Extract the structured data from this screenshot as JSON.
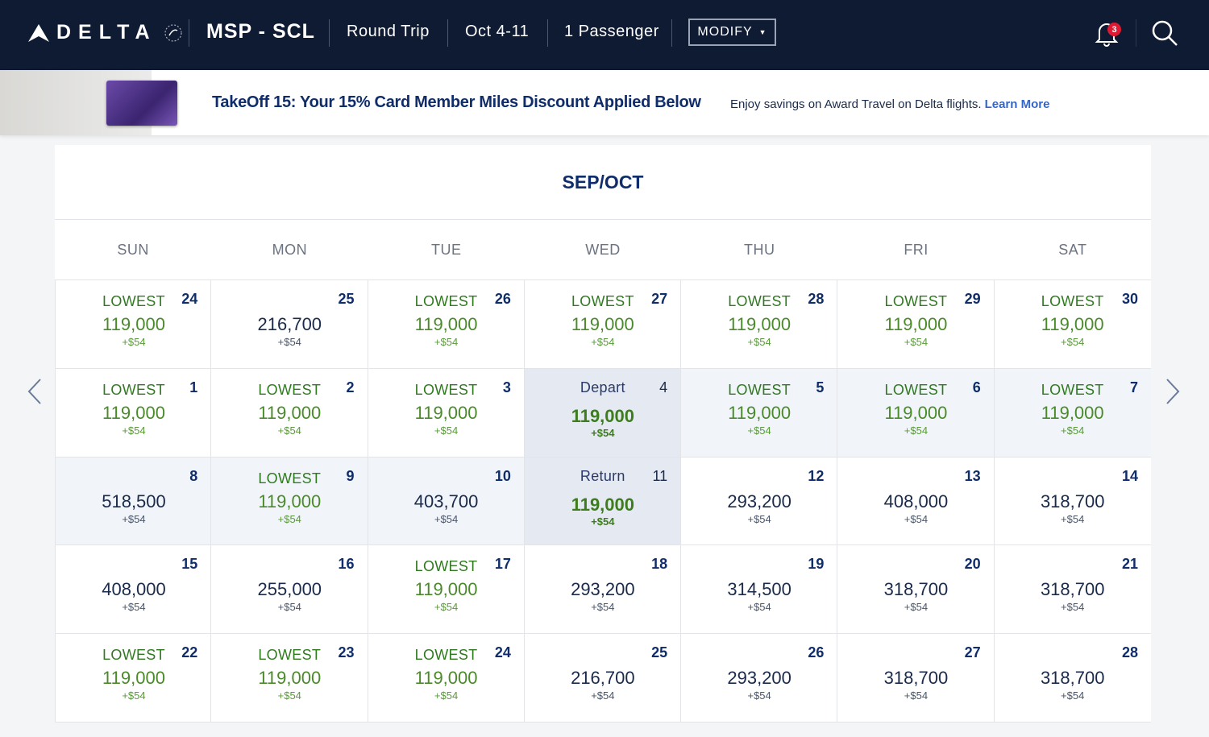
{
  "nav": {
    "brand": "DELTA",
    "route": "MSP - SCL",
    "trip_type": "Round Trip",
    "dates": "Oct 4-11",
    "passengers": "1 Passenger",
    "modify_label": "MODIFY",
    "notification_count": "3"
  },
  "banner": {
    "title": "TakeOff 15: Your 15% Card Member Miles Discount Applied Below",
    "subtitle": "Enjoy savings on Award Travel on Delta flights.",
    "link": "Learn More"
  },
  "calendar": {
    "month": "SEP/OCT",
    "days_of_week": [
      "SUN",
      "MON",
      "TUE",
      "WED",
      "THU",
      "FRI",
      "SAT"
    ],
    "lowest_label": "LOWEST",
    "cells": [
      {
        "day": "24",
        "label": "LOWEST",
        "price": "119,000",
        "fee": "+$54"
      },
      {
        "day": "25",
        "label": "",
        "price": "216,700",
        "fee": "+$54"
      },
      {
        "day": "26",
        "label": "LOWEST",
        "price": "119,000",
        "fee": "+$54"
      },
      {
        "day": "27",
        "label": "LOWEST",
        "price": "119,000",
        "fee": "+$54"
      },
      {
        "day": "28",
        "label": "LOWEST",
        "price": "119,000",
        "fee": "+$54"
      },
      {
        "day": "29",
        "label": "LOWEST",
        "price": "119,000",
        "fee": "+$54"
      },
      {
        "day": "30",
        "label": "LOWEST",
        "price": "119,000",
        "fee": "+$54"
      },
      {
        "day": "1",
        "label": "LOWEST",
        "price": "119,000",
        "fee": "+$54"
      },
      {
        "day": "2",
        "label": "LOWEST",
        "price": "119,000",
        "fee": "+$54"
      },
      {
        "day": "3",
        "label": "LOWEST",
        "price": "119,000",
        "fee": "+$54"
      },
      {
        "day": "4",
        "label": "Depart",
        "price": "119,000",
        "fee": "+$54",
        "state": "sel"
      },
      {
        "day": "5",
        "label": "LOWEST",
        "price": "119,000",
        "fee": "+$54",
        "state": "range"
      },
      {
        "day": "6",
        "label": "LOWEST",
        "price": "119,000",
        "fee": "+$54",
        "state": "range"
      },
      {
        "day": "7",
        "label": "LOWEST",
        "price": "119,000",
        "fee": "+$54",
        "state": "range"
      },
      {
        "day": "8",
        "label": "",
        "price": "518,500",
        "fee": "+$54",
        "state": "range"
      },
      {
        "day": "9",
        "label": "LOWEST",
        "price": "119,000",
        "fee": "+$54",
        "state": "range"
      },
      {
        "day": "10",
        "label": "",
        "price": "403,700",
        "fee": "+$54",
        "state": "range"
      },
      {
        "day": "11",
        "label": "Return",
        "price": "119,000",
        "fee": "+$54",
        "state": "sel"
      },
      {
        "day": "12",
        "label": "",
        "price": "293,200",
        "fee": "+$54"
      },
      {
        "day": "13",
        "label": "",
        "price": "408,000",
        "fee": "+$54"
      },
      {
        "day": "14",
        "label": "",
        "price": "318,700",
        "fee": "+$54"
      },
      {
        "day": "15",
        "label": "",
        "price": "408,000",
        "fee": "+$54"
      },
      {
        "day": "16",
        "label": "",
        "price": "255,000",
        "fee": "+$54"
      },
      {
        "day": "17",
        "label": "LOWEST",
        "price": "119,000",
        "fee": "+$54"
      },
      {
        "day": "18",
        "label": "",
        "price": "293,200",
        "fee": "+$54"
      },
      {
        "day": "19",
        "label": "",
        "price": "314,500",
        "fee": "+$54"
      },
      {
        "day": "20",
        "label": "",
        "price": "318,700",
        "fee": "+$54"
      },
      {
        "day": "21",
        "label": "",
        "price": "318,700",
        "fee": "+$54"
      },
      {
        "day": "22",
        "label": "LOWEST",
        "price": "119,000",
        "fee": "+$54"
      },
      {
        "day": "23",
        "label": "LOWEST",
        "price": "119,000",
        "fee": "+$54"
      },
      {
        "day": "24",
        "label": "LOWEST",
        "price": "119,000",
        "fee": "+$54"
      },
      {
        "day": "25",
        "label": "",
        "price": "216,700",
        "fee": "+$54"
      },
      {
        "day": "26",
        "label": "",
        "price": "293,200",
        "fee": "+$54"
      },
      {
        "day": "27",
        "label": "",
        "price": "318,700",
        "fee": "+$54"
      },
      {
        "day": "28",
        "label": "",
        "price": "318,700",
        "fee": "+$54"
      }
    ]
  },
  "icons": {
    "prev": "chevron-left-icon",
    "next": "chevron-right-icon",
    "bell": "bell-icon",
    "search": "search-icon"
  }
}
